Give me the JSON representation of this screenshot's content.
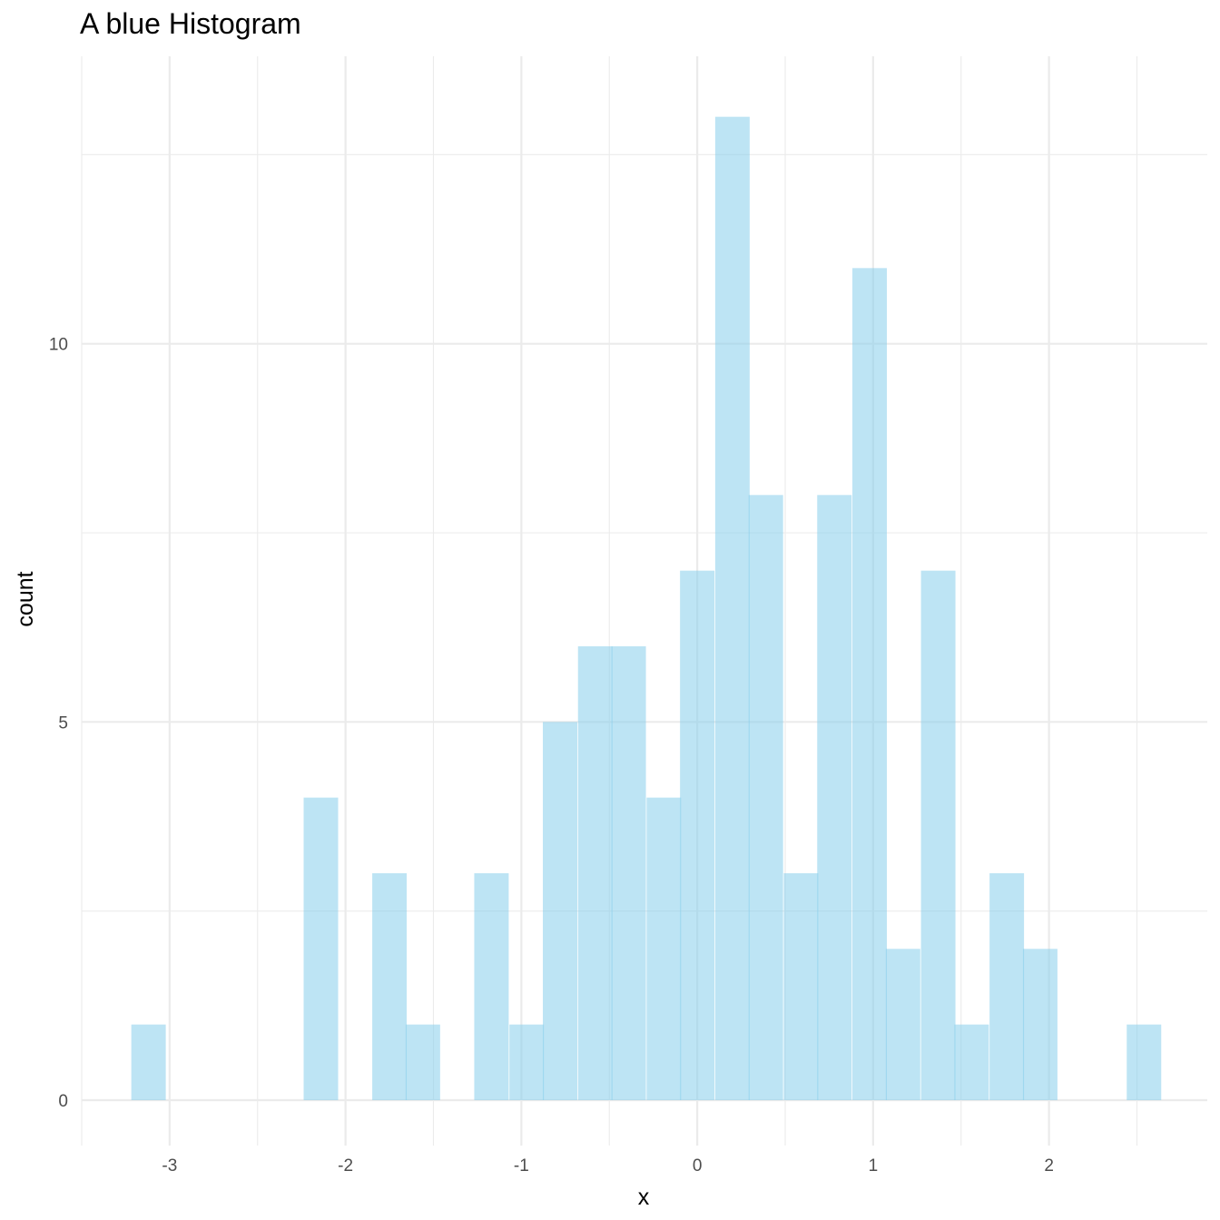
{
  "chart_data": {
    "type": "bar",
    "title": "A blue Histogram",
    "xlabel": "x",
    "ylabel": "count",
    "bar_color": "#87CEEB",
    "grid_color": "#ebebeb",
    "grid": true,
    "xlim": [
      -3.5,
      2.9
    ],
    "ylim": [
      -0.6,
      13.8
    ],
    "x_ticks": [
      -3,
      -2,
      -1,
      0,
      1,
      2
    ],
    "x_tick_labels": [
      "-3",
      "-2",
      "-1",
      "0",
      "1",
      "2"
    ],
    "y_ticks": [
      0,
      5,
      10
    ],
    "y_tick_labels": [
      "0",
      "5",
      "10"
    ],
    "bin_width": 0.196,
    "bins": [
      {
        "x": -3.12,
        "count": 1
      },
      {
        "x": -2.14,
        "count": 4
      },
      {
        "x": -1.75,
        "count": 3
      },
      {
        "x": -1.56,
        "count": 1
      },
      {
        "x": -1.17,
        "count": 3
      },
      {
        "x": -0.97,
        "count": 1
      },
      {
        "x": -0.78,
        "count": 5
      },
      {
        "x": -0.58,
        "count": 6
      },
      {
        "x": -0.39,
        "count": 6
      },
      {
        "x": -0.19,
        "count": 4
      },
      {
        "x": 0.0,
        "count": 7
      },
      {
        "x": 0.2,
        "count": 13
      },
      {
        "x": 0.39,
        "count": 8
      },
      {
        "x": 0.59,
        "count": 3
      },
      {
        "x": 0.78,
        "count": 8
      },
      {
        "x": 0.98,
        "count": 11
      },
      {
        "x": 1.17,
        "count": 2
      },
      {
        "x": 1.37,
        "count": 7
      },
      {
        "x": 1.56,
        "count": 1
      },
      {
        "x": 1.76,
        "count": 3
      },
      {
        "x": 1.95,
        "count": 2
      },
      {
        "x": 2.54,
        "count": 1
      }
    ]
  }
}
